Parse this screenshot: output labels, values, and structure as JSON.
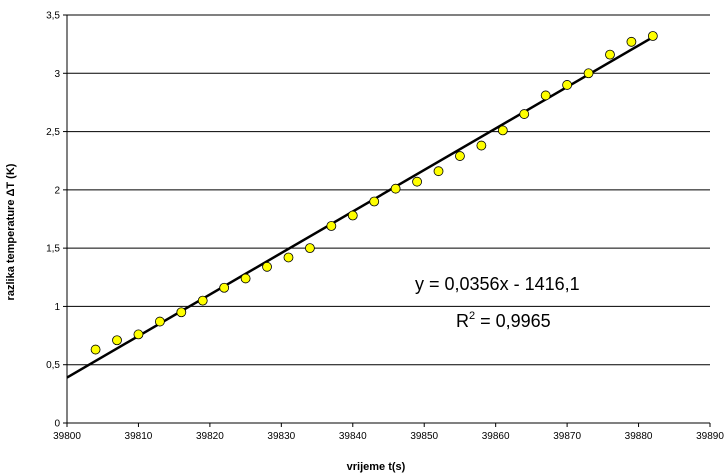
{
  "chart_data": {
    "type": "scatter",
    "xlabel": "vrijeme t(s)",
    "ylabel": "razlika temperature ΔT (K)",
    "xlim": [
      39800,
      39890
    ],
    "ylim": [
      0,
      3.5
    ],
    "x_ticks": [
      39800,
      39810,
      39820,
      39830,
      39840,
      39850,
      39860,
      39870,
      39880,
      39890
    ],
    "y_ticks": [
      0,
      0.5,
      1,
      1.5,
      2,
      2.5,
      3,
      3.5
    ],
    "y_tick_labels": [
      "0",
      "0,5",
      "1",
      "1,5",
      "2",
      "2,5",
      "3",
      "3,5"
    ],
    "grid": "horizontal",
    "legend": "none",
    "marker_color": "#ffff00",
    "trend_color": "#000000",
    "points": {
      "x": [
        39804,
        39807,
        39810,
        39813,
        39816,
        39819,
        39822,
        39825,
        39828,
        39831,
        39834,
        39837,
        39840,
        39843,
        39846,
        39849,
        39852,
        39855,
        39858,
        39861,
        39864,
        39867,
        39870,
        39873,
        39876,
        39879,
        39882
      ],
      "y": [
        0.63,
        0.71,
        0.76,
        0.87,
        0.95,
        1.05,
        1.16,
        1.24,
        1.34,
        1.42,
        1.5,
        1.69,
        1.78,
        1.9,
        2.01,
        2.07,
        2.16,
        2.29,
        2.38,
        2.51,
        2.65,
        2.81,
        2.9,
        3.0,
        3.16,
        3.27,
        3.32
      ]
    },
    "trendline": {
      "slope": 0.0356,
      "intercept": -1416.1,
      "x_range": [
        39800,
        39882
      ],
      "y_range": [
        0.39,
        3.31
      ]
    },
    "annotations": {
      "equation": "y = 0,0356x - 1416,1",
      "r2_prefix": "R",
      "r2_sup": "2",
      "r2_value": " = 0,9965"
    }
  }
}
